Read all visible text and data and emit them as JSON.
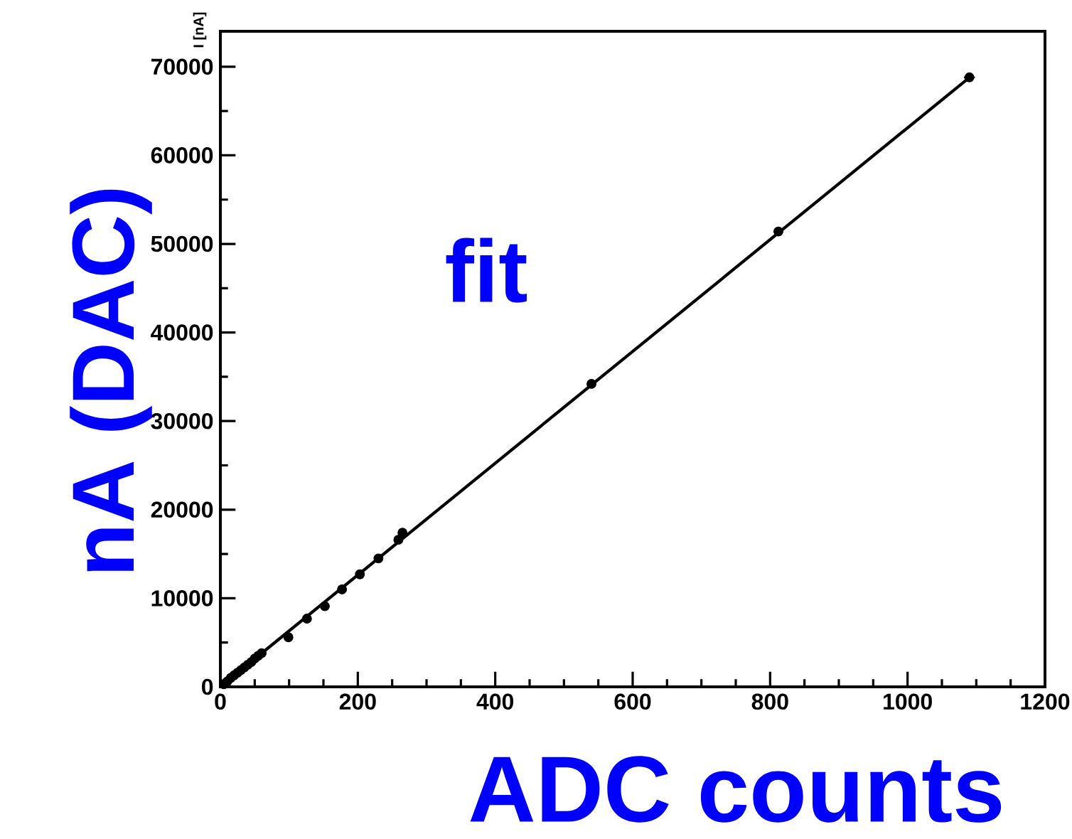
{
  "chart_data": {
    "type": "scatter",
    "ylabel": "I [nA]",
    "annotations": [
      "fit",
      "nA (DAC)",
      "ADC counts"
    ],
    "xlim": [
      0,
      1200
    ],
    "xticks": [
      0,
      200,
      400,
      600,
      800,
      1000,
      1200
    ],
    "ylim": [
      0,
      74000
    ],
    "yticks": [
      0,
      10000,
      20000,
      30000,
      40000,
      50000,
      60000,
      70000
    ],
    "grid": false,
    "series": [
      {
        "color": "#000000",
        "x": [
          5,
          10,
          15,
          20,
          25,
          30,
          35,
          40,
          45,
          50,
          55,
          60,
          99,
          126,
          152,
          177,
          203,
          230,
          259,
          265,
          540,
          812,
          1090
        ],
        "values": [
          300,
          600,
          1000,
          1300,
          1600,
          1900,
          2200,
          2500,
          2800,
          3200,
          3500,
          3800,
          5600,
          7700,
          9100,
          11000,
          12700,
          14500,
          16600,
          17400,
          34200,
          51400,
          68800
        ],
        "xerrors": [
          3,
          3,
          3,
          3,
          3,
          3,
          3,
          3,
          3,
          3,
          3,
          3,
          4,
          4,
          4,
          4,
          4,
          4,
          5,
          5,
          6,
          7,
          8
        ]
      },
      {
        "type": "line",
        "color": "#000000",
        "x": [
          0,
          1095
        ],
        "values": [
          0,
          69100
        ]
      }
    ]
  }
}
